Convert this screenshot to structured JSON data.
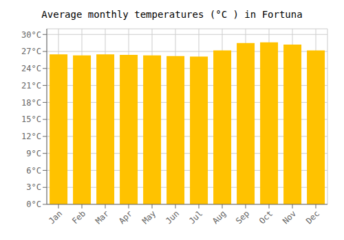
{
  "chart_data": {
    "type": "bar",
    "title": "Average monthly temperatures (°C ) in Fortuna",
    "categories": [
      "Jan",
      "Feb",
      "Mar",
      "Apr",
      "May",
      "Jun",
      "Jul",
      "Aug",
      "Sep",
      "Oct",
      "Nov",
      "Dec"
    ],
    "values": [
      26.5,
      26.3,
      26.5,
      26.4,
      26.3,
      26.2,
      26.1,
      27.2,
      28.5,
      28.6,
      28.2,
      27.2
    ],
    "color": "#FFC200",
    "ylim": [
      0,
      31
    ],
    "yticks": [
      {
        "value": 0,
        "label": "0°C"
      },
      {
        "value": 3,
        "label": "3°C"
      },
      {
        "value": 6,
        "label": "6°C"
      },
      {
        "value": 9,
        "label": "9°C"
      },
      {
        "value": 12,
        "label": "12°C"
      },
      {
        "value": 15,
        "label": "15°C"
      },
      {
        "value": 18,
        "label": "18°C"
      },
      {
        "value": 21,
        "label": "21°C"
      },
      {
        "value": 24,
        "label": "24°C"
      },
      {
        "value": 27,
        "label": "27°C"
      },
      {
        "value": 30,
        "label": "30°C"
      }
    ],
    "grid": true
  }
}
